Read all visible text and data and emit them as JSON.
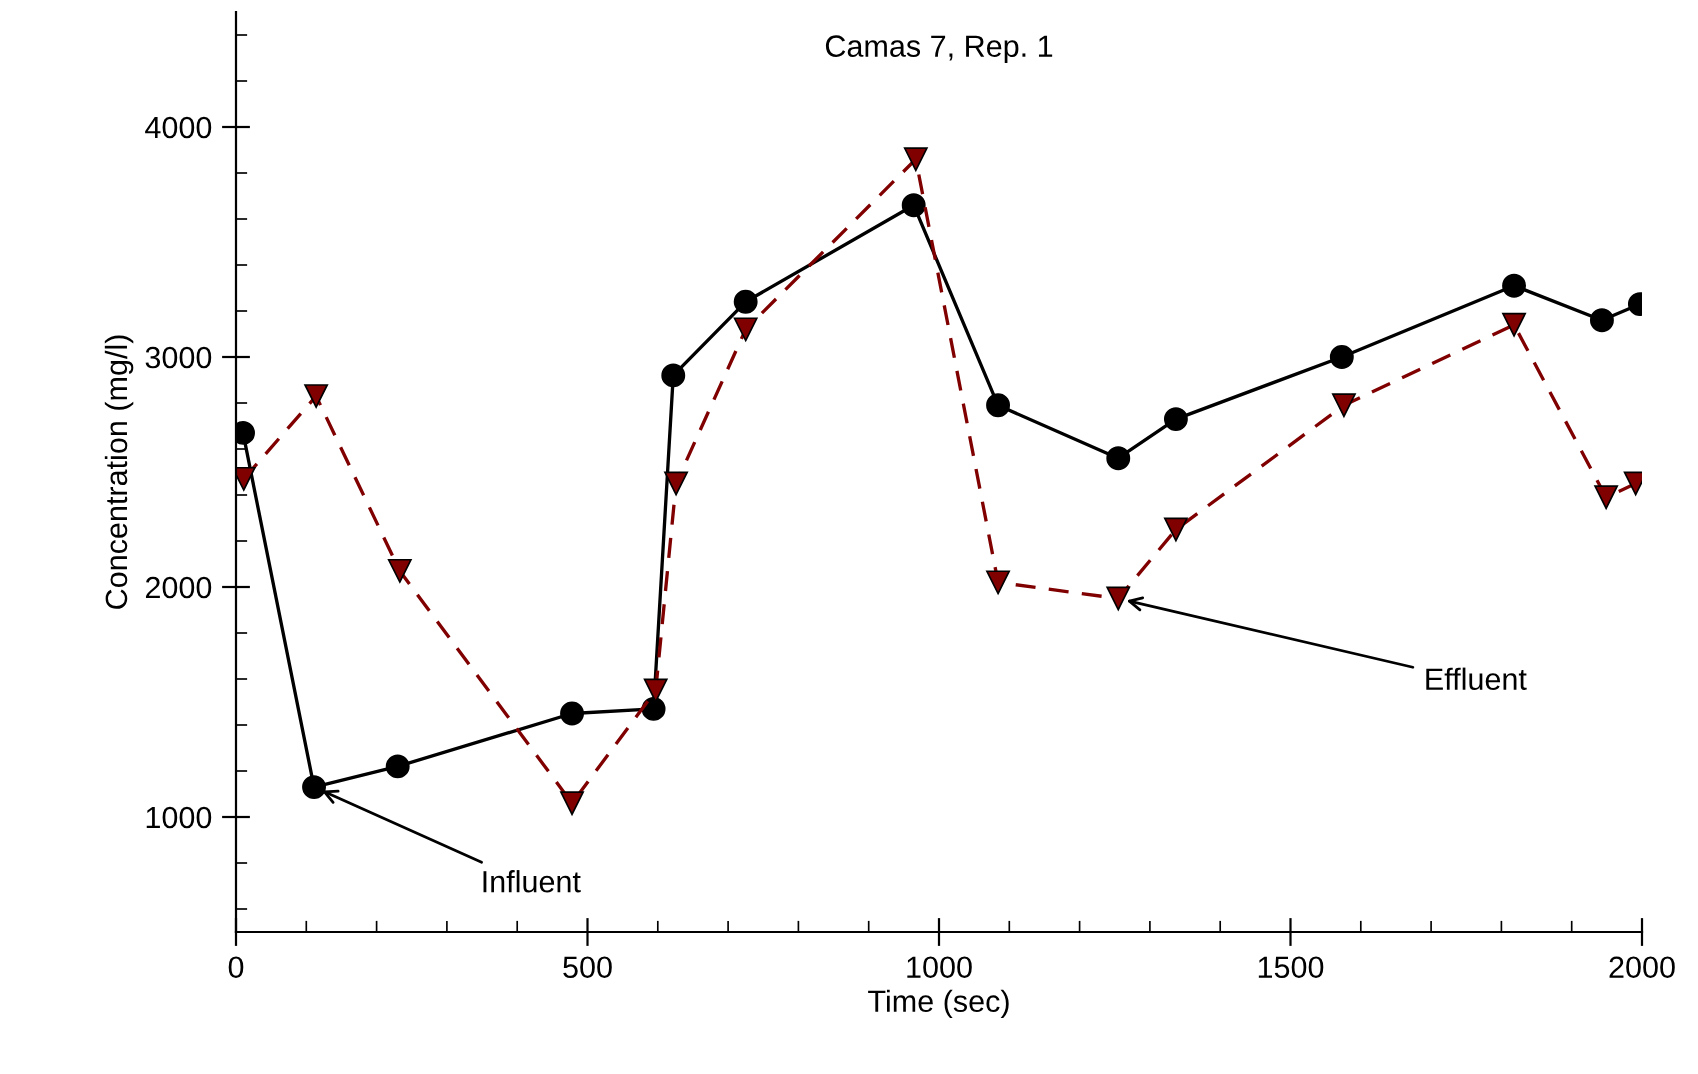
{
  "chart_data": {
    "type": "line",
    "title": "Camas 7, Rep. 1",
    "xlabel": "Time (sec)",
    "ylabel": "Concentration (mg/l)",
    "xlim": [
      0,
      2000
    ],
    "xticks": [
      0,
      500,
      1000,
      1500,
      2000
    ],
    "ylim": [
      500,
      4500
    ],
    "yticks": [
      1000,
      2000,
      3000,
      4000
    ],
    "grid": false,
    "legend": false,
    "series": [
      {
        "color": "#000000",
        "marker": "circle",
        "line_style": "solid",
        "x": [
          10,
          111,
          230,
          478,
          594,
          622,
          725,
          964,
          1084,
          1255,
          1337,
          1573,
          1818,
          1943,
          1997
        ],
        "values": [
          2670,
          1130,
          1220,
          1450,
          1470,
          2920,
          3240,
          3660,
          2790,
          2560,
          2730,
          3000,
          3310,
          3160,
          3230
        ]
      },
      {
        "color": "#800000",
        "marker": "triangle",
        "line_style": "dashed",
        "x": [
          11,
          114,
          233,
          478,
          597,
          626,
          725,
          967,
          1084,
          1255,
          1337,
          1576,
          1818,
          1949,
          1991
        ],
        "values": [
          2470,
          2830,
          2070,
          1060,
          1550,
          2450,
          3120,
          3860,
          2020,
          1950,
          2250,
          2790,
          3140,
          2390,
          2450
        ]
      }
    ],
    "annotations": [
      {
        "text": "Influent",
        "x": 111,
        "y": 1130
      },
      {
        "text": "Effluent",
        "x": 1255,
        "y": 1950
      }
    ]
  }
}
